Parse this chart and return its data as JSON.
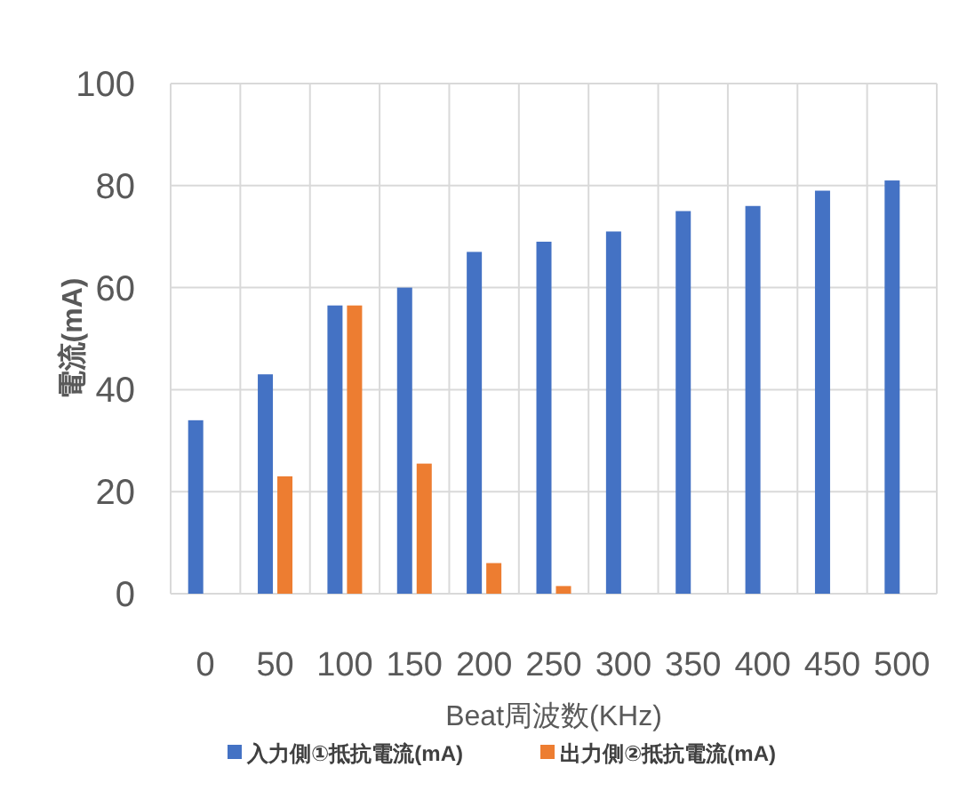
{
  "chart_data": {
    "type": "bar",
    "xlabel": "Beat周波数(KHz)",
    "ylabel": "電流(mA)",
    "categories": [
      "0",
      "50",
      "100",
      "150",
      "200",
      "250",
      "300",
      "350",
      "400",
      "450",
      "500"
    ],
    "series": [
      {
        "name": "入力側①抵抗電流(mA)",
        "color": "#4472c4",
        "values": [
          34,
          43,
          56.5,
          60,
          67,
          69,
          71,
          75,
          76,
          79,
          81
        ]
      },
      {
        "name": "出力側②抵抗電流(mA)",
        "color": "#ed7d31",
        "values": [
          null,
          23,
          56.5,
          25.5,
          6,
          1.5,
          null,
          null,
          null,
          null,
          null
        ]
      }
    ],
    "ylim": [
      0,
      100
    ],
    "yticks": [
      0,
      20,
      40,
      60,
      80,
      100
    ],
    "grid": true,
    "legend": "bottom"
  }
}
